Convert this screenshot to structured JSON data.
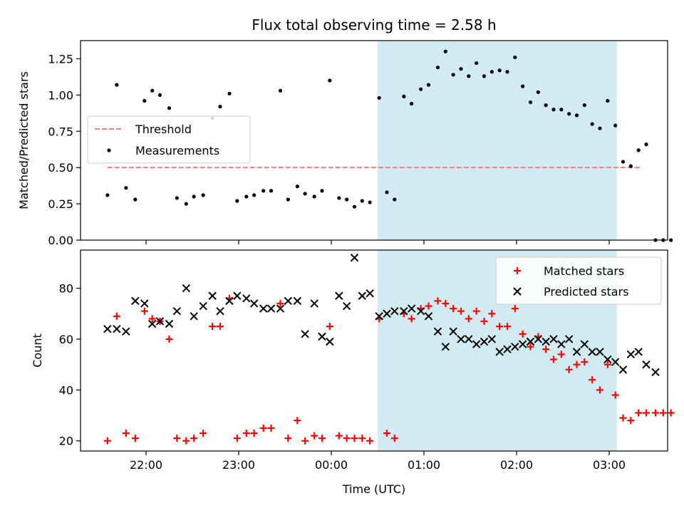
{
  "chart_data": [
    {
      "type": "scatter",
      "title": "Flux total observing time = 2.58 h",
      "ylabel": "Matched/Predicted stars",
      "xlabel": "",
      "x_axis": "time (UTC), tick labels hidden",
      "ylim": [
        0,
        1.375
      ],
      "yticks": [
        "0.00",
        "0.25",
        "0.50",
        "0.75",
        "1.00",
        "1.25"
      ],
      "grid": false,
      "legend_position": "center-left",
      "shaded_interval": [
        "00:30",
        "03:05"
      ],
      "shade_color": "#add8e6",
      "threshold": {
        "name": "Threshold",
        "value": 0.5,
        "x_range": [
          "21:35",
          "03:20"
        ],
        "color": "#f08080"
      },
      "series": [
        {
          "name": "Measurements",
          "color": "#000000",
          "points": [
            [
              "21:35",
              0.31
            ],
            [
              "21:41",
              1.07
            ],
            [
              "21:47",
              0.36
            ],
            [
              "21:53",
              0.28
            ],
            [
              "21:59",
              0.96
            ],
            [
              "22:04",
              1.03
            ],
            [
              "22:09",
              1.0
            ],
            [
              "22:15",
              0.91
            ],
            [
              "22:20",
              0.29
            ],
            [
              "22:26",
              0.25
            ],
            [
              "22:31",
              0.3
            ],
            [
              "22:37",
              0.31
            ],
            [
              "22:43",
              0.84
            ],
            [
              "22:48",
              0.92
            ],
            [
              "22:54",
              1.01
            ],
            [
              "22:59",
              0.27
            ],
            [
              "23:05",
              0.3
            ],
            [
              "23:10",
              0.31
            ],
            [
              "23:16",
              0.34
            ],
            [
              "23:21",
              0.34
            ],
            [
              "23:27",
              1.03
            ],
            [
              "23:32",
              0.28
            ],
            [
              "23:38",
              0.37
            ],
            [
              "23:43",
              0.32
            ],
            [
              "23:49",
              0.3
            ],
            [
              "23:54",
              0.34
            ],
            [
              "23:59",
              1.1
            ],
            [
              "00:05",
              0.29
            ],
            [
              "00:10",
              0.28
            ],
            [
              "00:15",
              0.23
            ],
            [
              "00:20",
              0.27
            ],
            [
              "00:25",
              0.26
            ],
            [
              "00:31",
              0.98
            ],
            [
              "00:36",
              0.33
            ],
            [
              "00:41",
              0.28
            ],
            [
              "00:47",
              0.99
            ],
            [
              "00:52",
              0.94
            ],
            [
              "00:58",
              1.04
            ],
            [
              "01:03",
              1.07
            ],
            [
              "01:09",
              1.19
            ],
            [
              "01:14",
              1.3
            ],
            [
              "01:19",
              1.14
            ],
            [
              "01:24",
              1.18
            ],
            [
              "01:29",
              1.13
            ],
            [
              "01:34",
              1.22
            ],
            [
              "01:39",
              1.13
            ],
            [
              "01:44",
              1.16
            ],
            [
              "01:49",
              1.17
            ],
            [
              "01:54",
              1.16
            ],
            [
              "01:59",
              1.26
            ],
            [
              "02:04",
              1.06
            ],
            [
              "02:09",
              0.95
            ],
            [
              "02:14",
              1.02
            ],
            [
              "02:19",
              0.93
            ],
            [
              "02:24",
              0.9
            ],
            [
              "02:29",
              0.9
            ],
            [
              "02:34",
              0.87
            ],
            [
              "02:39",
              0.86
            ],
            [
              "02:44",
              0.93
            ],
            [
              "02:49",
              0.8
            ],
            [
              "02:54",
              0.77
            ],
            [
              "02:59",
              0.96
            ],
            [
              "03:04",
              0.79
            ],
            [
              "03:09",
              0.54
            ],
            [
              "03:14",
              0.51
            ],
            [
              "03:19",
              0.62
            ],
            [
              "03:24",
              0.66
            ],
            [
              "03:30",
              0.0
            ],
            [
              "03:35",
              0.0
            ],
            [
              "03:40",
              0.0
            ]
          ]
        }
      ]
    },
    {
      "type": "scatter",
      "title": "",
      "xlabel": "Time (UTC)",
      "ylabel": "Count",
      "ylim": [
        16,
        95
      ],
      "yticks": [
        "20",
        "40",
        "60",
        "80"
      ],
      "xticks": [
        "22:00",
        "23:00",
        "00:00",
        "01:00",
        "02:00",
        "03:00"
      ],
      "grid": false,
      "legend_position": "top-right",
      "shaded_interval": [
        "00:30",
        "03:05"
      ],
      "shade_color": "#add8e6",
      "series": [
        {
          "name": "Matched stars",
          "color": "#ff0000",
          "marker": "plus",
          "points": [
            [
              "21:35",
              20
            ],
            [
              "21:41",
              69
            ],
            [
              "21:47",
              23
            ],
            [
              "21:53",
              21
            ],
            [
              "21:59",
              71
            ],
            [
              "22:04",
              68
            ],
            [
              "22:09",
              67
            ],
            [
              "22:15",
              60
            ],
            [
              "22:20",
              21
            ],
            [
              "22:26",
              20
            ],
            [
              "22:31",
              21
            ],
            [
              "22:37",
              23
            ],
            [
              "22:43",
              65
            ],
            [
              "22:48",
              65
            ],
            [
              "22:54",
              76
            ],
            [
              "22:59",
              21
            ],
            [
              "23:05",
              23
            ],
            [
              "23:10",
              23
            ],
            [
              "23:16",
              25
            ],
            [
              "23:21",
              25
            ],
            [
              "23:27",
              74
            ],
            [
              "23:32",
              21
            ],
            [
              "23:38",
              28
            ],
            [
              "23:43",
              20
            ],
            [
              "23:49",
              22
            ],
            [
              "23:54",
              21
            ],
            [
              "23:59",
              65
            ],
            [
              "00:05",
              22
            ],
            [
              "00:10",
              21
            ],
            [
              "00:15",
              21
            ],
            [
              "00:20",
              21
            ],
            [
              "00:25",
              20
            ],
            [
              "00:31",
              68
            ],
            [
              "00:36",
              23
            ],
            [
              "00:41",
              21
            ],
            [
              "00:47",
              70
            ],
            [
              "00:52",
              68
            ],
            [
              "00:58",
              72
            ],
            [
              "01:03",
              73
            ],
            [
              "01:09",
              75
            ],
            [
              "01:14",
              74
            ],
            [
              "01:19",
              72
            ],
            [
              "01:24",
              71
            ],
            [
              "01:29",
              68
            ],
            [
              "01:34",
              71
            ],
            [
              "01:39",
              67
            ],
            [
              "01:44",
              70
            ],
            [
              "01:49",
              65
            ],
            [
              "01:54",
              65
            ],
            [
              "01:59",
              72
            ],
            [
              "02:04",
              62
            ],
            [
              "02:09",
              57
            ],
            [
              "02:14",
              61
            ],
            [
              "02:19",
              56
            ],
            [
              "02:24",
              52
            ],
            [
              "02:29",
              54
            ],
            [
              "02:34",
              48
            ],
            [
              "02:39",
              50
            ],
            [
              "02:44",
              51
            ],
            [
              "02:49",
              44
            ],
            [
              "02:54",
              40
            ],
            [
              "02:59",
              50
            ],
            [
              "03:04",
              38
            ],
            [
              "03:09",
              29
            ],
            [
              "03:14",
              28
            ],
            [
              "03:19",
              31
            ],
            [
              "03:24",
              31
            ],
            [
              "03:30",
              31
            ],
            [
              "03:35",
              31
            ],
            [
              "03:40",
              31
            ]
          ]
        },
        {
          "name": "Predicted stars",
          "color": "#000000",
          "marker": "x",
          "points": [
            [
              "21:35",
              64
            ],
            [
              "21:41",
              64
            ],
            [
              "21:47",
              63
            ],
            [
              "21:53",
              75
            ],
            [
              "21:59",
              74
            ],
            [
              "22:04",
              66
            ],
            [
              "22:09",
              67
            ],
            [
              "22:15",
              66
            ],
            [
              "22:20",
              71
            ],
            [
              "22:26",
              80
            ],
            [
              "22:31",
              69
            ],
            [
              "22:37",
              73
            ],
            [
              "22:43",
              77
            ],
            [
              "22:48",
              71
            ],
            [
              "22:54",
              75
            ],
            [
              "22:59",
              77
            ],
            [
              "23:05",
              76
            ],
            [
              "23:10",
              74
            ],
            [
              "23:16",
              72
            ],
            [
              "23:21",
              72
            ],
            [
              "23:27",
              72
            ],
            [
              "23:32",
              75
            ],
            [
              "23:38",
              75
            ],
            [
              "23:43",
              62
            ],
            [
              "23:49",
              74
            ],
            [
              "23:54",
              61
            ],
            [
              "23:59",
              59
            ],
            [
              "00:05",
              77
            ],
            [
              "00:10",
              73
            ],
            [
              "00:15",
              92
            ],
            [
              "00:20",
              77
            ],
            [
              "00:25",
              78
            ],
            [
              "00:31",
              69
            ],
            [
              "00:36",
              70
            ],
            [
              "00:41",
              71
            ],
            [
              "00:47",
              71
            ],
            [
              "00:52",
              72
            ],
            [
              "00:58",
              71
            ],
            [
              "01:03",
              69
            ],
            [
              "01:09",
              63
            ],
            [
              "01:14",
              57
            ],
            [
              "01:19",
              63
            ],
            [
              "01:24",
              60
            ],
            [
              "01:29",
              60
            ],
            [
              "01:34",
              58
            ],
            [
              "01:39",
              59
            ],
            [
              "01:44",
              60
            ],
            [
              "01:49",
              55
            ],
            [
              "01:54",
              56
            ],
            [
              "01:59",
              57
            ],
            [
              "02:04",
              58
            ],
            [
              "02:09",
              59
            ],
            [
              "02:14",
              60
            ],
            [
              "02:19",
              59
            ],
            [
              "02:24",
              60
            ],
            [
              "02:29",
              58
            ],
            [
              "02:34",
              60
            ],
            [
              "02:39",
              55
            ],
            [
              "02:44",
              58
            ],
            [
              "02:49",
              55
            ],
            [
              "02:54",
              55
            ],
            [
              "02:59",
              52
            ],
            [
              "03:04",
              51
            ],
            [
              "03:09",
              48
            ],
            [
              "03:14",
              54
            ],
            [
              "03:19",
              55
            ],
            [
              "03:24",
              50
            ],
            [
              "03:30",
              47
            ]
          ]
        }
      ]
    }
  ]
}
